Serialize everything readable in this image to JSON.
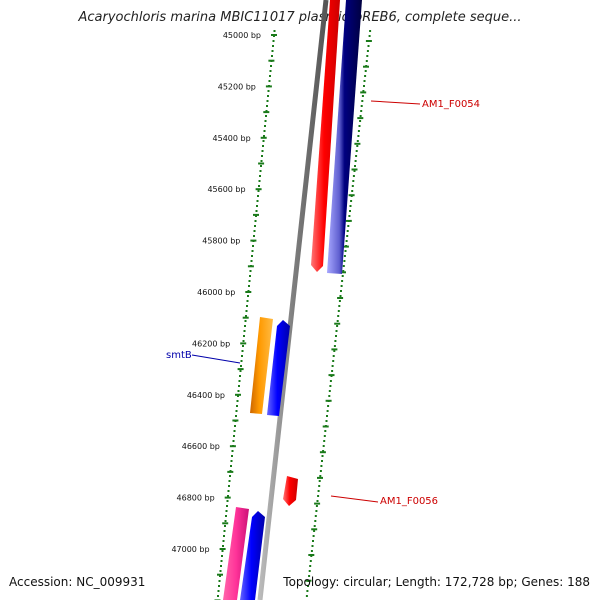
{
  "title": "Acaryochloris marina MBIC11017 plasmid pREB6, complete seque...",
  "accession": "Accession: NC_009931",
  "summary": "Topology: circular; Length: 172,728 bp; Genes: 188",
  "ticks": [
    {
      "label": "45000 bp"
    },
    {
      "label": "45200 bp"
    },
    {
      "label": "45400 bp"
    },
    {
      "label": "45600 bp"
    },
    {
      "label": "45800 bp"
    },
    {
      "label": "46000 bp"
    },
    {
      "label": "46200 bp"
    },
    {
      "label": "46400 bp"
    },
    {
      "label": "46600 bp"
    },
    {
      "label": "46800 bp"
    },
    {
      "label": "47000 bp"
    }
  ],
  "features": [
    {
      "name": "AM1_F0054",
      "color": "#cc0000"
    },
    {
      "name": "smtB",
      "color": "#0000aa"
    },
    {
      "name": "AM1_F0056",
      "color": "#cc0000"
    }
  ],
  "colors": {
    "tick_green": "#1a7a1a",
    "backbone": "#7f7f7f",
    "red_gene": "#ff0000",
    "blue_gene": "#0000ff",
    "navy_gene": "#000080",
    "orange_gene": "#ff9900",
    "pink_gene": "#ff3399"
  }
}
